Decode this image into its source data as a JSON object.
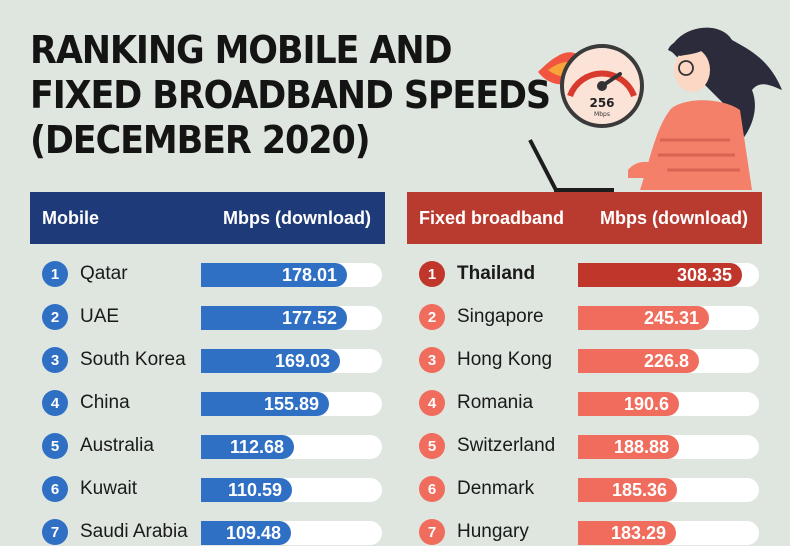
{
  "title_lines": [
    "RANKING MOBILE AND",
    "FIXED BROADBAND SPEEDS",
    "(DECEMBER 2020)"
  ],
  "speedometer_value": "256",
  "speedometer_unit": "Mbps",
  "colors": {
    "mobile_header": "#1f3a78",
    "mobile_bar": "#2f6fc4",
    "fixed_header": "#b93a2e",
    "fixed_bar": "#f06c5c",
    "fixed_top_bar": "#c0362b",
    "background": "#dfe6df"
  },
  "chart_data": [
    {
      "type": "bar",
      "header_left": "Mobile",
      "header_right": "Mbps (download)",
      "ranks": [
        "1",
        "2",
        "3",
        "4",
        "5",
        "6",
        "7"
      ],
      "categories": [
        "Qatar",
        "UAE",
        "South Korea",
        "China",
        "Australia",
        "Kuwait",
        "Saudi Arabia"
      ],
      "values": [
        178.01,
        177.52,
        169.03,
        155.89,
        112.68,
        110.59,
        109.48
      ],
      "labels": [
        "178.01",
        "177.52",
        "169.03",
        "155.89",
        "112.68",
        "110.59",
        "109.48"
      ],
      "xlim": [
        0,
        220
      ]
    },
    {
      "type": "bar",
      "header_left": "Fixed broadband",
      "header_right": "Mbps (download)",
      "ranks": [
        "1",
        "2",
        "3",
        "4",
        "5",
        "6",
        "7"
      ],
      "categories": [
        "Thailand",
        "Singapore",
        "Hong Kong",
        "Romania",
        "Switzerland",
        "Denmark",
        "Hungary"
      ],
      "values": [
        308.35,
        245.31,
        226.8,
        190.6,
        188.88,
        185.36,
        183.29
      ],
      "labels": [
        "308.35",
        "245.31",
        "226.8",
        "190.6",
        "188.88",
        "185.36",
        "183.29"
      ],
      "xlim": [
        0,
        340
      ]
    }
  ]
}
